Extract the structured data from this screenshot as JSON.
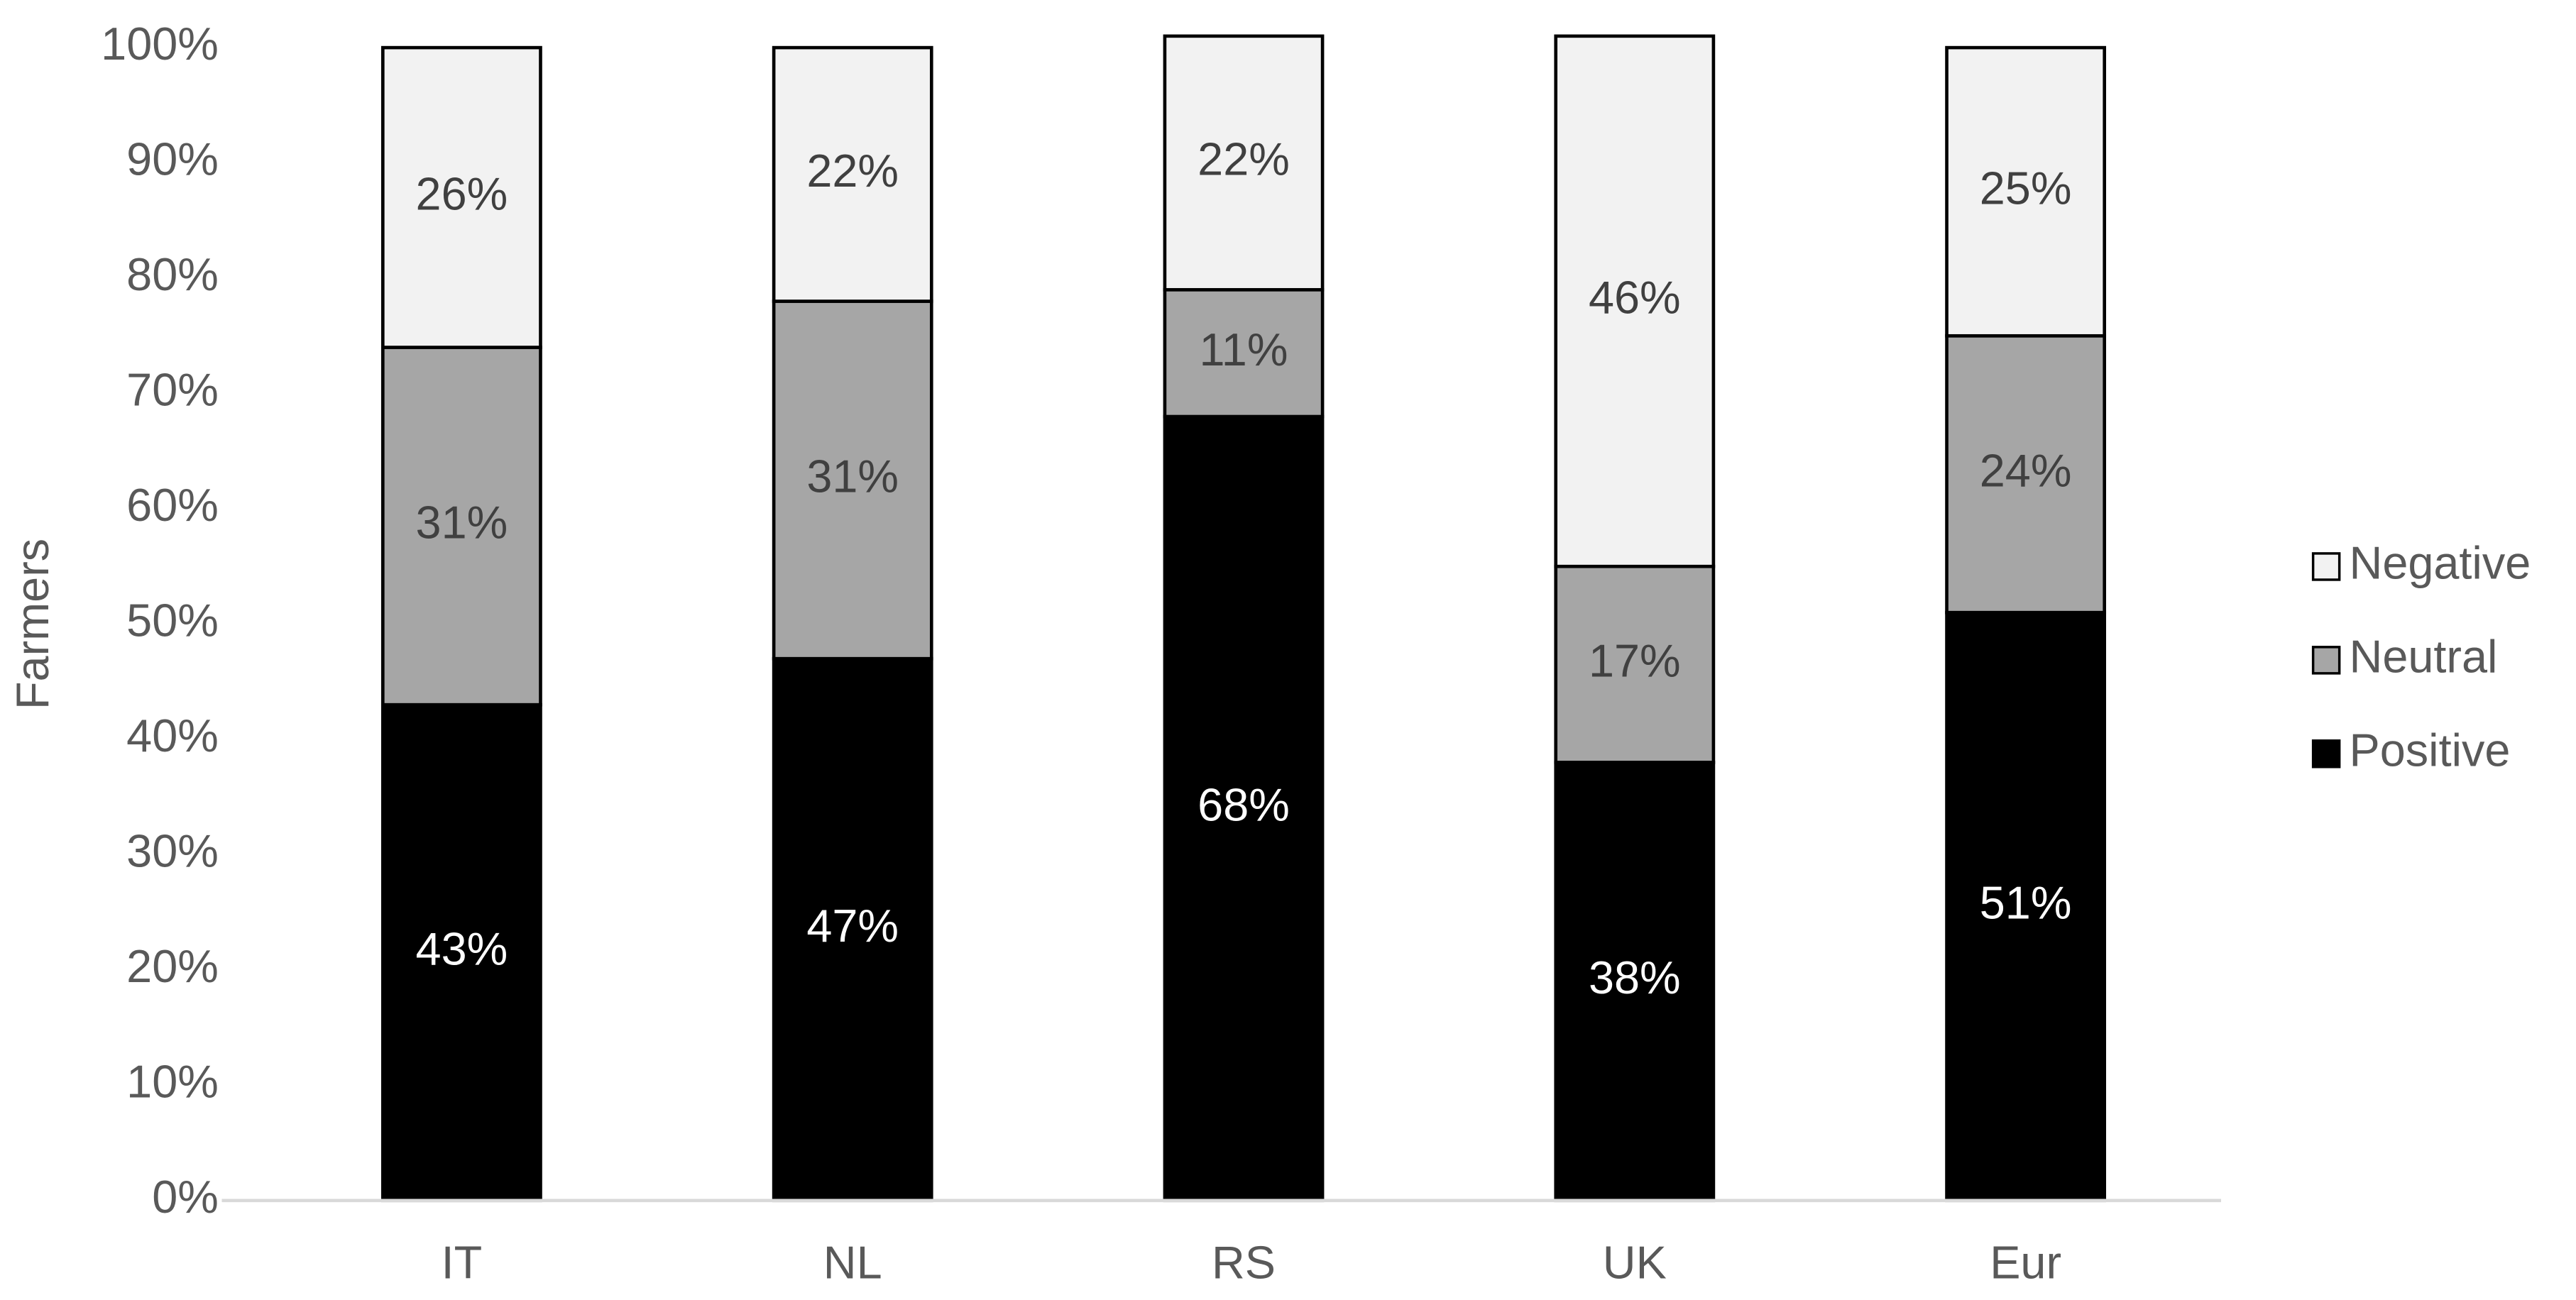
{
  "chart_data": {
    "type": "stacked_bar",
    "y_label": "Farmers",
    "categories": [
      "IT",
      "NL",
      "RS",
      "UK",
      "Eur"
    ],
    "series": [
      {
        "name": "Positive",
        "color": "#000000",
        "label_color": "#ffffff",
        "values": [
          43,
          47,
          68,
          38,
          51
        ],
        "value_labels": [
          "43%",
          "47%",
          "68%",
          "38%",
          "51%"
        ]
      },
      {
        "name": "Neutral",
        "color": "#a6a6a6",
        "label_color": "#404040",
        "values": [
          31,
          31,
          11,
          17,
          24
        ],
        "value_labels": [
          "31%",
          "31%",
          "11%",
          "17%",
          "24%"
        ]
      },
      {
        "name": "Negative",
        "color": "#f2f2f2",
        "label_color": "#404040",
        "values": [
          26,
          22,
          22,
          46,
          25
        ],
        "value_labels": [
          "26%",
          "22%",
          "22%",
          "46%",
          "25%"
        ]
      }
    ],
    "ylim": [
      0,
      100
    ],
    "yticks": [
      {
        "value": 0,
        "label": "0%"
      },
      {
        "value": 10,
        "label": "10%"
      },
      {
        "value": 20,
        "label": "20%"
      },
      {
        "value": 30,
        "label": "30%"
      },
      {
        "value": 40,
        "label": "40%"
      },
      {
        "value": 50,
        "label": "50%"
      },
      {
        "value": 60,
        "label": "60%"
      },
      {
        "value": 70,
        "label": "70%"
      },
      {
        "value": 80,
        "label": "80%"
      },
      {
        "value": 90,
        "label": "90%"
      },
      {
        "value": 100,
        "label": "100%"
      }
    ],
    "grid": false,
    "legend": "right"
  }
}
